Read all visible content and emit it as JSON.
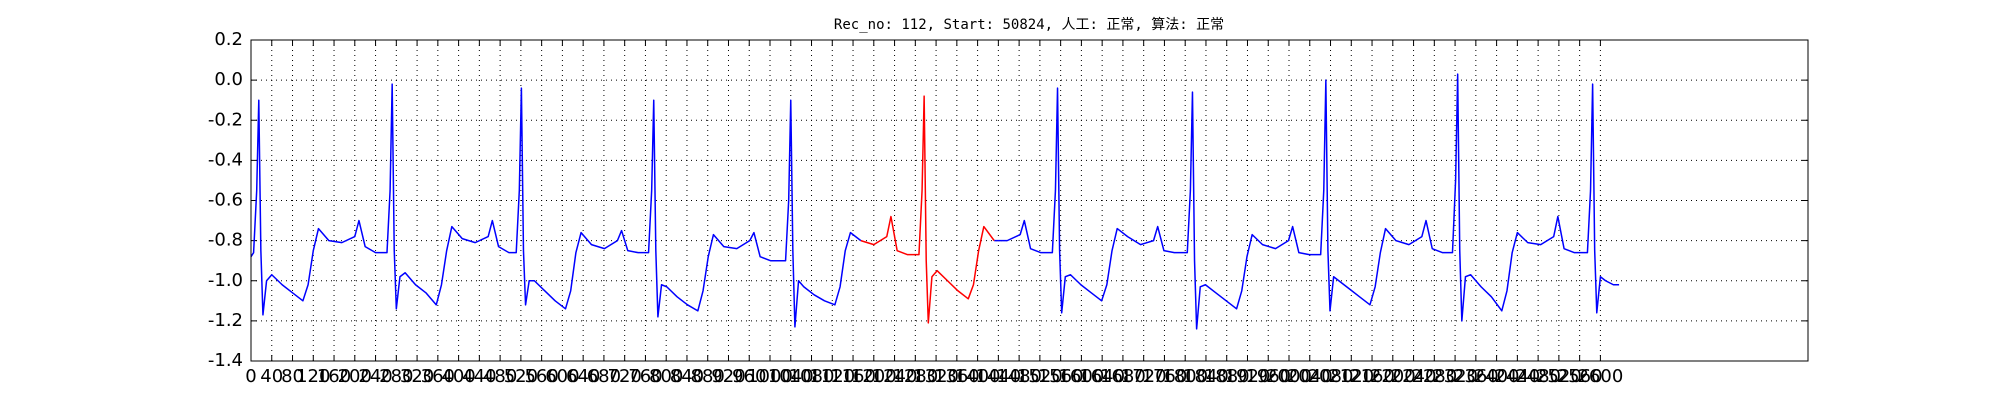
{
  "chart_data": {
    "type": "line",
    "title": "Rec_no: 112, Start: 50824, 人工: 正常, 算法: 正常",
    "xlim": [
      0,
      3000
    ],
    "xticks": [
      0,
      40,
      80,
      120,
      160,
      200,
      240,
      280,
      320,
      360,
      400,
      440,
      480,
      520,
      560,
      600,
      640,
      680,
      720,
      760,
      800,
      840,
      880,
      920,
      960,
      1000,
      1040,
      1080,
      1120,
      1160,
      1200,
      1240,
      1280,
      1320,
      1360,
      1400,
      1440,
      1480,
      1520,
      1560,
      1600,
      1640,
      1680,
      1720,
      1760,
      1800,
      1840,
      1880,
      1920,
      1960,
      2000,
      2040,
      2080,
      2120,
      2160,
      2200,
      2240,
      2280,
      2320,
      2360,
      2400,
      2440,
      2480,
      2520,
      2560,
      2600
    ],
    "ylim": [
      -1.4,
      0.2
    ],
    "yticks": [
      -1.4,
      -1.2,
      {
        "value": -1,
        "label": "-1.0"
      },
      -0.8,
      -0.6,
      -0.4,
      -0.2,
      {
        "value": 0,
        "label": "0.0"
      },
      0.2
    ],
    "grid": true,
    "series": [
      {
        "color": "#0000ff",
        "x": [
          0,
          5,
          11,
          15,
          19,
          23,
          30,
          40,
          60,
          80,
          100,
          110,
          120,
          130,
          150,
          175,
          200,
          208,
          220,
          240,
          262,
          268,
          272,
          276,
          280,
          287,
          297,
          317,
          337,
          357,
          367,
          377,
          387,
          407,
          432,
          457,
          465,
          477,
          497,
          511,
          517,
          521,
          525,
          529,
          536,
          546,
          566,
          586,
          606,
          616,
          626,
          636,
          656,
          681,
          706,
          714,
          726,
          746,
          766,
          772,
          776,
          780,
          784,
          791,
          801,
          821,
          841,
          861,
          871,
          881,
          891,
          911,
          936,
          961,
          969,
          981,
          1001,
          1030,
          1036,
          1040,
          1044,
          1048,
          1055,
          1065,
          1085,
          1105,
          1125,
          1135,
          1145,
          1155,
          1175,
          1300,
          1432,
          1457,
          1482,
          1490,
          1502,
          1522,
          1544,
          1550,
          1554,
          1558,
          1562,
          1569,
          1579,
          1599,
          1619,
          1639,
          1649,
          1659,
          1669,
          1689,
          1714,
          1739,
          1747,
          1759,
          1779,
          1804,
          1810,
          1814,
          1818,
          1822,
          1829,
          1839,
          1859,
          1879,
          1899,
          1909,
          1919,
          1929,
          1949,
          1974,
          1999,
          2007,
          2019,
          2039,
          2061,
          2067,
          2071,
          2075,
          2079,
          2086,
          2096,
          2116,
          2136,
          2156,
          2166,
          2176,
          2186,
          2206,
          2231,
          2256,
          2264,
          2276,
          2296,
          2315,
          2321,
          2325,
          2329,
          2333,
          2340,
          2350,
          2370,
          2390,
          2410,
          2420,
          2430,
          2440,
          2460,
          2485,
          2510,
          2518,
          2530,
          2550,
          2575,
          2581,
          2585,
          2589,
          2593,
          2600,
          2610,
          2625,
          2636
        ],
        "values": [
          -0.88,
          -0.86,
          -0.55,
          -0.1,
          -0.85,
          -1.17,
          -1.0,
          -0.97,
          -1.02,
          -1.06,
          -1.1,
          -1.02,
          -0.85,
          -0.74,
          -0.8,
          -0.81,
          -0.78,
          -0.7,
          -0.83,
          -0.86,
          -0.86,
          -0.55,
          -0.02,
          -0.85,
          -1.14,
          -0.98,
          -0.96,
          -1.02,
          -1.06,
          -1.12,
          -1.02,
          -0.85,
          -0.73,
          -0.79,
          -0.81,
          -0.78,
          -0.7,
          -0.83,
          -0.86,
          -0.86,
          -0.55,
          -0.04,
          -0.85,
          -1.12,
          -1.0,
          -1.0,
          -1.05,
          -1.1,
          -1.14,
          -1.05,
          -0.86,
          -0.76,
          -0.82,
          -0.84,
          -0.8,
          -0.75,
          -0.85,
          -0.86,
          -0.86,
          -0.55,
          -0.1,
          -0.85,
          -1.18,
          -1.02,
          -1.03,
          -1.08,
          -1.12,
          -1.15,
          -1.05,
          -0.88,
          -0.77,
          -0.83,
          -0.84,
          -0.8,
          -0.76,
          -0.88,
          -0.9,
          -0.9,
          -0.6,
          -0.1,
          -0.85,
          -1.23,
          -1.0,
          -1.03,
          -1.07,
          -1.1,
          -1.12,
          -1.03,
          -0.85,
          -0.76,
          -0.8,
          null,
          -0.8,
          -0.8,
          -0.77,
          -0.7,
          -0.84,
          -0.86,
          -0.86,
          -0.55,
          -0.04,
          -0.85,
          -1.16,
          -0.98,
          -0.97,
          -1.02,
          -1.06,
          -1.1,
          -1.02,
          -0.85,
          -0.74,
          -0.78,
          -0.82,
          -0.8,
          -0.73,
          -0.85,
          -0.86,
          -0.86,
          -0.55,
          -0.06,
          -0.9,
          -1.24,
          -1.03,
          -1.02,
          -1.06,
          -1.1,
          -1.14,
          -1.05,
          -0.88,
          -0.77,
          -0.82,
          -0.84,
          -0.8,
          -0.73,
          -0.86,
          -0.87,
          -0.87,
          -0.55,
          0.0,
          -0.85,
          -1.15,
          -0.98,
          -1.0,
          -1.04,
          -1.08,
          -1.12,
          -1.03,
          -0.86,
          -0.74,
          -0.8,
          -0.82,
          -0.78,
          -0.7,
          -0.84,
          -0.86,
          -0.86,
          -0.5,
          0.03,
          -0.85,
          -1.2,
          -0.98,
          -0.97,
          -1.03,
          -1.08,
          -1.15,
          -1.05,
          -0.86,
          -0.76,
          -0.81,
          -0.82,
          -0.78,
          -0.68,
          -0.84,
          -0.86,
          -0.86,
          -0.55,
          -0.02,
          -0.85,
          -1.16,
          -0.98,
          -1.0,
          -1.02,
          -1.02
        ]
      },
      {
        "color": "#ff0000",
        "x": [
          1175,
          1200,
          1225,
          1233,
          1245,
          1265,
          1287,
          1293,
          1297,
          1301,
          1305,
          1312,
          1322,
          1342,
          1362,
          1382,
          1392,
          1402,
          1412,
          1432
        ],
        "values": [
          -0.8,
          -0.82,
          -0.78,
          -0.68,
          -0.85,
          -0.87,
          -0.87,
          -0.55,
          -0.08,
          -0.9,
          -1.21,
          -0.98,
          -0.95,
          -1.0,
          -1.05,
          -1.09,
          -1.02,
          -0.85,
          -0.73,
          -0.8
        ]
      }
    ]
  }
}
